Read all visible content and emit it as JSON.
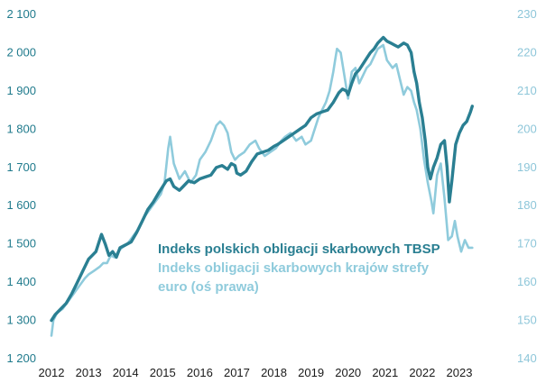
{
  "chart_data": {
    "type": "line",
    "title": "",
    "xlabel": "",
    "ylabel_left": "",
    "ylabel_right": "",
    "x_ticks": [
      "2012",
      "2013",
      "2014",
      "2015",
      "2016",
      "2017",
      "2018",
      "2019",
      "2020",
      "2021",
      "2022",
      "2023"
    ],
    "xlim": [
      2012.0,
      2023.95
    ],
    "y_left": {
      "ticks": [
        "1 200",
        "1 300",
        "1 400",
        "1 500",
        "1 600",
        "1 700",
        "1 800",
        "1 900",
        "2 000",
        "2 100"
      ],
      "range": [
        1200,
        2100
      ]
    },
    "y_right": {
      "ticks": [
        "140",
        "150",
        "160",
        "170",
        "180",
        "190",
        "200",
        "210",
        "220",
        "230"
      ],
      "range": [
        140,
        230
      ]
    },
    "legend": [
      "Indeks polskich  obligacji  skarbowych TBSP",
      "Indeks obligacji  skarbowych krajów  strefy",
      "euro (oś prawa)"
    ],
    "series": [
      {
        "name": "Indeks polskich obligacji skarbowych TBSP",
        "axis": "left",
        "color": "#2a7f92",
        "points": [
          [
            2012.0,
            1300
          ],
          [
            2012.1,
            1315
          ],
          [
            2012.25,
            1330
          ],
          [
            2012.4,
            1345
          ],
          [
            2012.55,
            1370
          ],
          [
            2012.7,
            1400
          ],
          [
            2012.85,
            1430
          ],
          [
            2013.0,
            1460
          ],
          [
            2013.1,
            1470
          ],
          [
            2013.2,
            1480
          ],
          [
            2013.3,
            1510
          ],
          [
            2013.35,
            1525
          ],
          [
            2013.45,
            1500
          ],
          [
            2013.55,
            1470
          ],
          [
            2013.65,
            1480
          ],
          [
            2013.75,
            1465
          ],
          [
            2013.85,
            1490
          ],
          [
            2013.95,
            1495
          ],
          [
            2014.05,
            1500
          ],
          [
            2014.15,
            1505
          ],
          [
            2014.3,
            1530
          ],
          [
            2014.45,
            1560
          ],
          [
            2014.6,
            1590
          ],
          [
            2014.75,
            1610
          ],
          [
            2014.9,
            1635
          ],
          [
            2015.0,
            1650
          ],
          [
            2015.1,
            1665
          ],
          [
            2015.2,
            1670
          ],
          [
            2015.3,
            1650
          ],
          [
            2015.45,
            1640
          ],
          [
            2015.55,
            1650
          ],
          [
            2015.7,
            1665
          ],
          [
            2015.85,
            1660
          ],
          [
            2016.0,
            1670
          ],
          [
            2016.15,
            1675
          ],
          [
            2016.3,
            1680
          ],
          [
            2016.45,
            1700
          ],
          [
            2016.6,
            1705
          ],
          [
            2016.75,
            1695
          ],
          [
            2016.85,
            1710
          ],
          [
            2016.95,
            1705
          ],
          [
            2017.0,
            1685
          ],
          [
            2017.1,
            1680
          ],
          [
            2017.25,
            1690
          ],
          [
            2017.4,
            1715
          ],
          [
            2017.55,
            1735
          ],
          [
            2017.7,
            1740
          ],
          [
            2017.85,
            1745
          ],
          [
            2018.0,
            1755
          ],
          [
            2018.1,
            1760
          ],
          [
            2018.25,
            1770
          ],
          [
            2018.4,
            1780
          ],
          [
            2018.55,
            1790
          ],
          [
            2018.7,
            1800
          ],
          [
            2018.85,
            1810
          ],
          [
            2019.0,
            1830
          ],
          [
            2019.15,
            1840
          ],
          [
            2019.3,
            1845
          ],
          [
            2019.45,
            1850
          ],
          [
            2019.6,
            1870
          ],
          [
            2019.75,
            1895
          ],
          [
            2019.85,
            1905
          ],
          [
            2019.95,
            1900
          ],
          [
            2020.0,
            1890
          ],
          [
            2020.1,
            1920
          ],
          [
            2020.2,
            1945
          ],
          [
            2020.3,
            1955
          ],
          [
            2020.4,
            1970
          ],
          [
            2020.5,
            1985
          ],
          [
            2020.6,
            2000
          ],
          [
            2020.7,
            2010
          ],
          [
            2020.8,
            2025
          ],
          [
            2020.9,
            2035
          ],
          [
            2020.95,
            2040
          ],
          [
            2021.05,
            2030
          ],
          [
            2021.15,
            2025
          ],
          [
            2021.25,
            2020
          ],
          [
            2021.35,
            2015
          ],
          [
            2021.5,
            2025
          ],
          [
            2021.6,
            2020
          ],
          [
            2021.7,
            2000
          ],
          [
            2021.78,
            1950
          ],
          [
            2021.85,
            1920
          ],
          [
            2021.92,
            1870
          ],
          [
            2022.0,
            1830
          ],
          [
            2022.08,
            1770
          ],
          [
            2022.15,
            1700
          ],
          [
            2022.22,
            1670
          ],
          [
            2022.3,
            1700
          ],
          [
            2022.4,
            1725
          ],
          [
            2022.5,
            1760
          ],
          [
            2022.6,
            1770
          ],
          [
            2022.67,
            1700
          ],
          [
            2022.73,
            1610
          ],
          [
            2022.8,
            1665
          ],
          [
            2022.9,
            1760
          ],
          [
            2023.0,
            1790
          ],
          [
            2023.1,
            1810
          ],
          [
            2023.2,
            1820
          ],
          [
            2023.3,
            1845
          ],
          [
            2023.35,
            1860
          ]
        ]
      },
      {
        "name": "Indeks obligacji skarbowych krajów strefy euro",
        "axis": "right",
        "color": "#8fcbdc",
        "points": [
          [
            2012.0,
            146
          ],
          [
            2012.05,
            150
          ],
          [
            2012.15,
            152
          ],
          [
            2012.3,
            153
          ],
          [
            2012.45,
            155
          ],
          [
            2012.6,
            157
          ],
          [
            2012.75,
            159
          ],
          [
            2012.9,
            161
          ],
          [
            2013.0,
            162
          ],
          [
            2013.15,
            163
          ],
          [
            2013.3,
            164
          ],
          [
            2013.4,
            165
          ],
          [
            2013.5,
            165
          ],
          [
            2013.6,
            167
          ],
          [
            2013.7,
            166.5
          ],
          [
            2013.8,
            168
          ],
          [
            2013.9,
            169
          ],
          [
            2014.05,
            170
          ],
          [
            2014.2,
            172
          ],
          [
            2014.35,
            174
          ],
          [
            2014.5,
            177
          ],
          [
            2014.65,
            179
          ],
          [
            2014.8,
            181
          ],
          [
            2014.95,
            183
          ],
          [
            2015.05,
            186
          ],
          [
            2015.15,
            195
          ],
          [
            2015.2,
            198
          ],
          [
            2015.3,
            191
          ],
          [
            2015.45,
            187
          ],
          [
            2015.6,
            189
          ],
          [
            2015.75,
            186
          ],
          [
            2015.9,
            188
          ],
          [
            2016.0,
            192
          ],
          [
            2016.15,
            194
          ],
          [
            2016.3,
            197
          ],
          [
            2016.45,
            201
          ],
          [
            2016.55,
            202
          ],
          [
            2016.65,
            201
          ],
          [
            2016.75,
            199
          ],
          [
            2016.85,
            194
          ],
          [
            2016.95,
            192
          ],
          [
            2017.05,
            193
          ],
          [
            2017.2,
            194
          ],
          [
            2017.35,
            196
          ],
          [
            2017.5,
            197
          ],
          [
            2017.6,
            195
          ],
          [
            2017.75,
            193
          ],
          [
            2017.9,
            194
          ],
          [
            2018.05,
            195
          ],
          [
            2018.2,
            197
          ],
          [
            2018.3,
            198
          ],
          [
            2018.45,
            199
          ],
          [
            2018.6,
            197
          ],
          [
            2018.75,
            198
          ],
          [
            2018.85,
            196
          ],
          [
            2019.0,
            197
          ],
          [
            2019.1,
            200
          ],
          [
            2019.2,
            203
          ],
          [
            2019.3,
            205
          ],
          [
            2019.4,
            207
          ],
          [
            2019.5,
            210
          ],
          [
            2019.6,
            215
          ],
          [
            2019.65,
            218
          ],
          [
            2019.7,
            221
          ],
          [
            2019.8,
            220
          ],
          [
            2019.9,
            214
          ],
          [
            2020.0,
            208
          ],
          [
            2020.1,
            215
          ],
          [
            2020.2,
            216
          ],
          [
            2020.3,
            212
          ],
          [
            2020.4,
            214
          ],
          [
            2020.5,
            216
          ],
          [
            2020.6,
            217
          ],
          [
            2020.7,
            219
          ],
          [
            2020.8,
            221
          ],
          [
            2020.95,
            222
          ],
          [
            2021.05,
            218
          ],
          [
            2021.2,
            216
          ],
          [
            2021.3,
            217
          ],
          [
            2021.4,
            213
          ],
          [
            2021.5,
            209
          ],
          [
            2021.6,
            211
          ],
          [
            2021.7,
            210
          ],
          [
            2021.78,
            207
          ],
          [
            2021.85,
            205
          ],
          [
            2021.95,
            200
          ],
          [
            2022.05,
            192
          ],
          [
            2022.15,
            186
          ],
          [
            2022.25,
            181
          ],
          [
            2022.3,
            178
          ],
          [
            2022.4,
            188
          ],
          [
            2022.5,
            191
          ],
          [
            2022.6,
            182
          ],
          [
            2022.7,
            171
          ],
          [
            2022.8,
            172
          ],
          [
            2022.88,
            176
          ],
          [
            2022.95,
            172
          ],
          [
            2023.05,
            168
          ],
          [
            2023.15,
            171
          ],
          [
            2023.25,
            169
          ],
          [
            2023.35,
            169
          ]
        ]
      }
    ]
  }
}
